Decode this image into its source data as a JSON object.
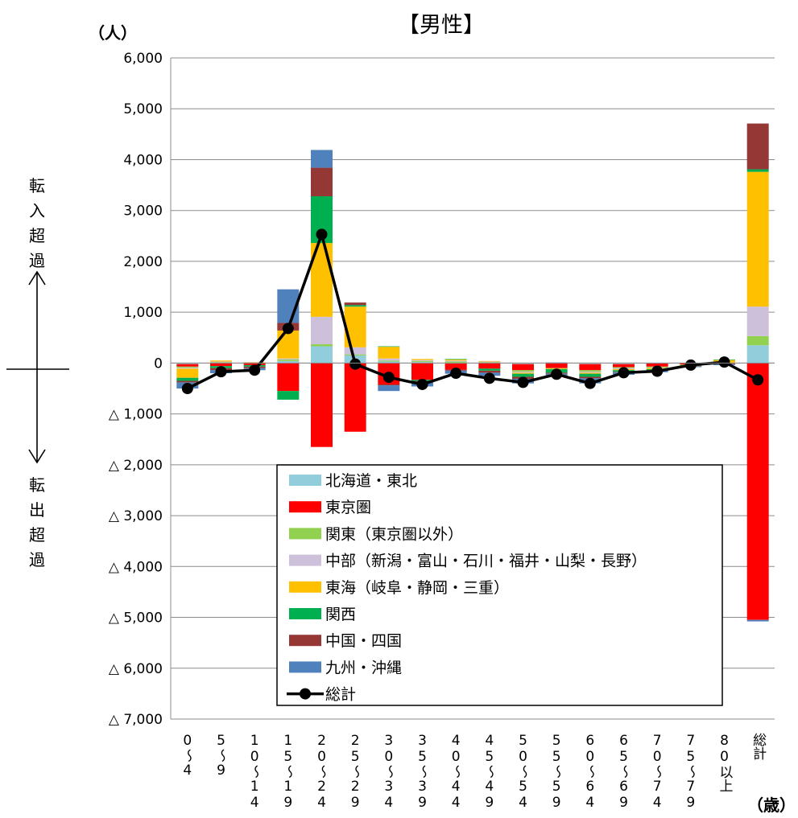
{
  "chart_data": {
    "type": "bar",
    "stacked": true,
    "title": "【男性】",
    "ylabel": "（人）",
    "xlabel": "（歳）",
    "side_label_top": "転入超過",
    "side_label_bottom": "転出超過",
    "ylim": [
      -7000,
      6000
    ],
    "yticks": [
      {
        "value": 6000,
        "label": "6,000"
      },
      {
        "value": 5000,
        "label": "5,000"
      },
      {
        "value": 4000,
        "label": "4,000"
      },
      {
        "value": 3000,
        "label": "3,000"
      },
      {
        "value": 2000,
        "label": "2,000"
      },
      {
        "value": 1000,
        "label": "1,000"
      },
      {
        "value": 0,
        "label": "0"
      },
      {
        "value": -1000,
        "label": "△ 1,000"
      },
      {
        "value": -2000,
        "label": "△ 2,000"
      },
      {
        "value": -3000,
        "label": "△ 3,000"
      },
      {
        "value": -4000,
        "label": "△ 4,000"
      },
      {
        "value": -5000,
        "label": "△ 5,000"
      },
      {
        "value": -6000,
        "label": "△ 6,000"
      },
      {
        "value": -7000,
        "label": "△ 7,000"
      }
    ],
    "categories": [
      "0～4",
      "5～9",
      "10～14",
      "15～19",
      "20～24",
      "25～29",
      "30～34",
      "35～39",
      "40～44",
      "45～49",
      "50～54",
      "55～59",
      "60～64",
      "65～69",
      "70～74",
      "75～79",
      "80以上",
      "総計"
    ],
    "series": [
      {
        "name": "北海道・東北",
        "color": "#92CDDC",
        "values": [
          -20,
          10,
          5,
          40,
          330,
          150,
          30,
          20,
          -10,
          10,
          -20,
          10,
          -20,
          -20,
          -10,
          0,
          0,
          350
        ]
      },
      {
        "name": "東京圏",
        "color": "#FF0000",
        "values": [
          -50,
          -60,
          -40,
          -550,
          -1650,
          -1350,
          -420,
          -330,
          -120,
          -110,
          -120,
          -100,
          -120,
          -60,
          -60,
          -30,
          -10,
          -5050
        ]
      },
      {
        "name": "関東（東京圏以外）",
        "color": "#92D050",
        "values": [
          -20,
          10,
          5,
          30,
          40,
          20,
          20,
          20,
          30,
          10,
          -30,
          -10,
          -30,
          -20,
          -20,
          -10,
          10,
          180
        ]
      },
      {
        "name": "中部（新潟・富山・石川・福井・山梨・長野）",
        "color": "#CCC0DA",
        "values": [
          -20,
          10,
          5,
          20,
          540,
          140,
          40,
          20,
          20,
          10,
          -20,
          10,
          -20,
          -20,
          -10,
          0,
          0,
          580
        ]
      },
      {
        "name": "東海（岐阜・静岡・三重）",
        "color": "#FFC000",
        "values": [
          -180,
          20,
          5,
          550,
          1450,
          800,
          230,
          20,
          20,
          10,
          -20,
          -10,
          -20,
          -20,
          -20,
          -10,
          50,
          2650
        ]
      },
      {
        "name": "関西",
        "color": "#00B050",
        "values": [
          -60,
          -40,
          -30,
          -170,
          920,
          30,
          10,
          -20,
          10,
          -40,
          -60,
          -70,
          -60,
          -30,
          -20,
          -10,
          10,
          50
        ]
      },
      {
        "name": "中国・四国",
        "color": "#953735",
        "values": [
          -30,
          -40,
          -30,
          150,
          560,
          50,
          -20,
          -20,
          -20,
          -40,
          -40,
          -20,
          -30,
          -10,
          -10,
          -10,
          -10,
          900
        ]
      },
      {
        "name": "九州・沖縄",
        "color": "#4F81BD",
        "values": [
          -120,
          -60,
          -40,
          660,
          350,
          0,
          -110,
          -90,
          -60,
          -60,
          -90,
          -50,
          -100,
          -50,
          -30,
          -10,
          -20,
          -30
        ]
      }
    ],
    "total": {
      "name": "総計",
      "color": "#000000",
      "values": [
        -500,
        -170,
        -140,
        680,
        2530,
        -20,
        -280,
        -420,
        -200,
        -300,
        -380,
        -220,
        -400,
        -190,
        -160,
        -40,
        20,
        -330
      ]
    },
    "legend_position": "bottom-center",
    "grid": true
  }
}
